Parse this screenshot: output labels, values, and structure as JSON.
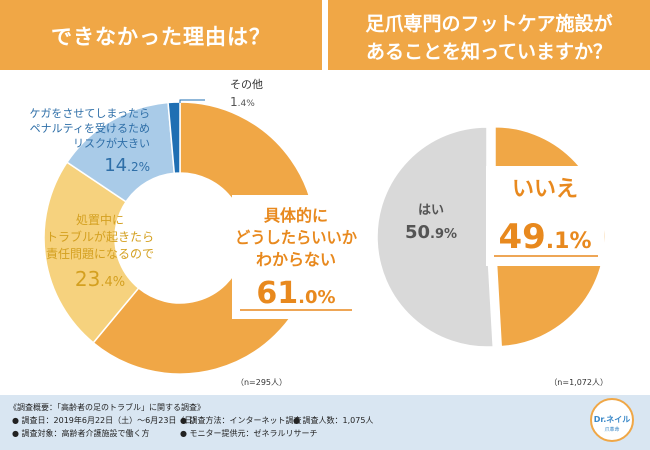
{
  "header": {
    "left_title": "できなかった理由は？",
    "right_title_line1": "足爪専門のフットケア施設が",
    "right_title_line2": "あることを知っていますか？"
  },
  "chart_data": [
    {
      "type": "pie",
      "variant": "donut",
      "title": "できなかった理由は？",
      "sample": "（n=295人）",
      "slices": [
        {
          "label_lines": [
            "具体的に",
            "どうしたらいいか",
            "わからない"
          ],
          "value": 61.0,
          "value_big": "61",
          "value_small": ".0%",
          "color": "#f0a746"
        },
        {
          "label_lines": [
            "処置中に",
            "トラブルが起きたら",
            "責任問題になるので"
          ],
          "value": 23.4,
          "value_big": "23",
          "value_small": ".4%",
          "color": "#f6d27e"
        },
        {
          "label_lines": [
            "ケガをさせてしまったら",
            "ペナルティを受けるため",
            "リスクが大きい"
          ],
          "value": 14.2,
          "value_big": "14",
          "value_small": ".2%",
          "color": "#a9cbe8"
        },
        {
          "label_lines": [
            "その他"
          ],
          "value": 1.4,
          "value_big": "1",
          "value_small": ".4%",
          "color": "#1f6fb3"
        }
      ]
    },
    {
      "type": "pie",
      "title": "足爪専門のフットケア施設があることを知っていますか？",
      "sample": "（n=1,072人）",
      "slices": [
        {
          "label": "いいえ",
          "value": 49.1,
          "value_big": "49",
          "value_small": ".1%",
          "color": "#f0a746"
        },
        {
          "label": "はい",
          "value": 50.9,
          "value_big": "50",
          "value_small": ".9%",
          "color": "#d9d9d9"
        }
      ]
    }
  ],
  "footer": {
    "line1": "《調査概要：「高齢者の足のトラブル」に関する調査》",
    "item_period": "● 調査日：2019年6月22日（土）〜6月23日（日）",
    "item_method": "● 調査方法：インターネット調査",
    "item_count": "● 調査人数：1,075人",
    "item_target": "● 調査対象：高齢者介護施設で働く方",
    "item_provider": "● モニター提供元：ゼネラルリサーチ"
  },
  "logo": {
    "brand": "Dr.ネイル",
    "sub": "爪革命"
  },
  "colors": {
    "accent": "#f0a746",
    "accent_text": "#e8891e",
    "light_orange": "#f6d27e",
    "light_blue": "#a9cbe8",
    "dark_blue": "#1f6fb3",
    "grey": "#d9d9d9",
    "footer_bg": "#d9e6f2"
  }
}
